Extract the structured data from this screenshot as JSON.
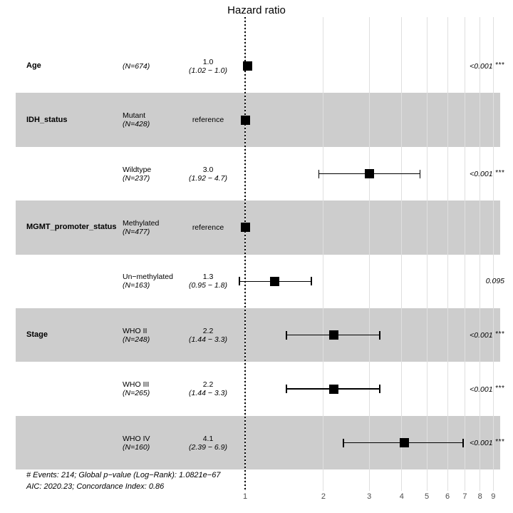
{
  "title": "Hazard ratio",
  "colors": {
    "band": "#cdcdcd",
    "gridline": "#dfdfdf",
    "marker": "#000000",
    "reference_line": "#000000",
    "axis_text": "#4d4d4d",
    "text": "#000000"
  },
  "chart_data": {
    "type": "forest",
    "title": "Hazard ratio",
    "x_scale": "log10",
    "x_ticks": [
      1,
      2,
      3,
      4,
      5,
      6,
      7,
      8,
      9
    ],
    "x_range": [
      0.9,
      9.7
    ],
    "reference_line_x": 1,
    "grid": "on",
    "legend": "none",
    "band_rows_shaded": [
      2,
      4,
      6,
      8
    ],
    "rows": [
      {
        "variable": "Age",
        "level": "",
        "n": "(N=674)",
        "estimate": "1.0",
        "ci": "(1.02 − 1.0)",
        "hr": 1.02,
        "lo": 1.02,
        "hi": 1.02,
        "p": "<0.001",
        "stars": "***",
        "band": false
      },
      {
        "variable": "IDH_status",
        "level": "Mutant",
        "n": "(N=428)",
        "estimate": "reference",
        "ci": "",
        "hr": 1.0,
        "lo": 1.0,
        "hi": 1.0,
        "p": "",
        "stars": "",
        "band": true
      },
      {
        "variable": "",
        "level": "Wildtype",
        "n": "(N=237)",
        "estimate": "3.0",
        "ci": "(1.92 − 4.7)",
        "hr": 3.0,
        "lo": 1.92,
        "hi": 4.7,
        "p": "<0.001",
        "stars": "***",
        "band": false
      },
      {
        "variable": "MGMT_promoter_status",
        "level": "Methylated",
        "n": "(N=477)",
        "estimate": "reference",
        "ci": "",
        "hr": 1.0,
        "lo": 1.0,
        "hi": 1.0,
        "p": "",
        "stars": "",
        "band": true
      },
      {
        "variable": "",
        "level": "Un−methylated",
        "n": "(N=163)",
        "estimate": "1.3",
        "ci": "(0.95 − 1.8)",
        "hr": 1.3,
        "lo": 0.95,
        "hi": 1.8,
        "p": "0.095",
        "stars": "",
        "band": false
      },
      {
        "variable": "Stage",
        "level": "WHO II",
        "n": "(N=248)",
        "estimate": "2.2",
        "ci": "(1.44 − 3.3)",
        "hr": 2.2,
        "lo": 1.44,
        "hi": 3.3,
        "p": "<0.001",
        "stars": "***",
        "band": true
      },
      {
        "variable": "",
        "level": "WHO III",
        "n": "(N=265)",
        "estimate": "2.2",
        "ci": "(1.44 − 3.3)",
        "hr": 2.2,
        "lo": 1.44,
        "hi": 3.3,
        "p": "<0.001",
        "stars": "***",
        "band": false
      },
      {
        "variable": "",
        "level": "WHO IV",
        "n": "(N=160)",
        "estimate": "4.1",
        "ci": "(2.39 − 6.9)",
        "hr": 4.1,
        "lo": 2.39,
        "hi": 6.9,
        "p": "<0.001",
        "stars": "***",
        "band": true
      }
    ],
    "footnotes": [
      "# Events: 214; Global p−value (Log−Rank): 1.0821e−67",
      "AIC: 2020.23; Concordance Index: 0.86"
    ]
  }
}
